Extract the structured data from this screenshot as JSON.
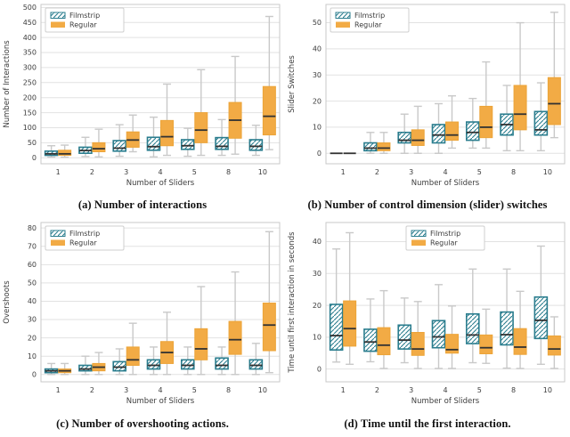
{
  "colors": {
    "filmstrip": "#2a7d8e",
    "regular": "#f2ab45",
    "regular_edge": "#eca438",
    "median": "#323232",
    "whisker": "#c9c9c9",
    "grid": "#e2e2e2",
    "frame": "#c9c9c9",
    "text": "#3c3c3c",
    "legend_border": "#cfcfcf",
    "background": "#ffffff"
  },
  "chart_data": [
    {
      "type": "boxplot",
      "caption": "(a) Number of interactions",
      "xlabel": "Number of Sliders",
      "ylabel": "Number of Interactions",
      "categories": [
        "1",
        "2",
        "3",
        "4",
        "5",
        "8",
        "10"
      ],
      "yticks": [
        0,
        50,
        100,
        150,
        200,
        250,
        300,
        350,
        400,
        450,
        500
      ],
      "ylim": [
        -20,
        510
      ],
      "legend_position": "top-left",
      "grid": "horizontal",
      "series": [
        {
          "name": "Filmstrip",
          "style": "hatched",
          "boxes": [
            [
              2,
              8,
              13,
              22,
              40
            ],
            [
              4,
              15,
              24,
              35,
              68
            ],
            [
              5,
              22,
              32,
              57,
              110
            ],
            [
              3,
              25,
              37,
              68,
              135
            ],
            [
              5,
              28,
              40,
              60,
              98
            ],
            [
              8,
              28,
              38,
              67,
              127
            ],
            [
              8,
              25,
              38,
              60,
              108
            ]
          ]
        },
        {
          "name": "Regular",
          "style": "solid",
          "boxes": [
            [
              2,
              8,
              13,
              25,
              42
            ],
            [
              3,
              20,
              30,
              50,
              95
            ],
            [
              20,
              35,
              59,
              86,
              142
            ],
            [
              8,
              40,
              70,
              124,
              245
            ],
            [
              8,
              50,
              92,
              150,
              293
            ],
            [
              12,
              65,
              125,
              184,
              337
            ],
            [
              27,
              76,
              138,
              237,
              470
            ]
          ]
        }
      ]
    },
    {
      "type": "boxplot",
      "caption": "(b) Number of control dimension (slider) switches",
      "xlabel": "Number of Sliders",
      "ylabel": "Slider Switches",
      "categories": [
        "1",
        "2",
        "3",
        "4",
        "5",
        "8",
        "10"
      ],
      "yticks": [
        0,
        10,
        20,
        30,
        40,
        50
      ],
      "ylim": [
        -4,
        57
      ],
      "legend_position": "top-left",
      "grid": "horizontal",
      "series": [
        {
          "name": "Filmstrip",
          "style": "hatched",
          "boxes": [
            [
              0,
              0,
              0,
              0,
              0
            ],
            [
              0,
              1,
              2,
              4,
              8
            ],
            [
              0,
              4,
              5,
              8,
              15
            ],
            [
              0,
              4,
              7,
              11,
              19
            ],
            [
              2,
              5,
              8,
              12,
              21
            ],
            [
              1,
              7,
              11,
              15,
              26
            ],
            [
              1,
              7,
              9,
              16,
              27
            ]
          ]
        },
        {
          "name": "Regular",
          "style": "solid",
          "boxes": [
            [
              0,
              0,
              0,
              0,
              0
            ],
            [
              0,
              1,
              2,
              4,
              8
            ],
            [
              0,
              3,
              5,
              9,
              18
            ],
            [
              2,
              5,
              7,
              12,
              22
            ],
            [
              2,
              6,
              10,
              18,
              35
            ],
            [
              1,
              9,
              15,
              26,
              50
            ],
            [
              6,
              11,
              19,
              29,
              54
            ]
          ]
        }
      ]
    },
    {
      "type": "boxplot",
      "caption": "(c) Number of overshooting actions.",
      "xlabel": "Number of Sliders",
      "ylabel": "Overshoots",
      "categories": [
        "1",
        "2",
        "3",
        "4",
        "5",
        "8",
        "10"
      ],
      "yticks": [
        0,
        10,
        20,
        30,
        40,
        50,
        60,
        70,
        80
      ],
      "ylim": [
        -4,
        83
      ],
      "legend_position": "top-left",
      "grid": "horizontal",
      "series": [
        {
          "name": "Filmstrip",
          "style": "hatched",
          "boxes": [
            [
              0,
              1,
              2,
              3,
              6
            ],
            [
              0,
              2,
              3,
              5,
              10
            ],
            [
              0,
              2,
              4,
              7,
              14
            ],
            [
              0,
              3,
              5,
              8,
              15
            ],
            [
              0,
              3,
              5,
              8,
              15
            ],
            [
              0,
              3,
              5,
              9,
              15
            ],
            [
              0,
              3,
              5,
              8,
              17
            ]
          ]
        },
        {
          "name": "Regular",
          "style": "solid",
          "boxes": [
            [
              0,
              1,
              2,
              3,
              6
            ],
            [
              0,
              2,
              4,
              6,
              12
            ],
            [
              0,
              5,
              8,
              15,
              28
            ],
            [
              0,
              6,
              12,
              18,
              34
            ],
            [
              0,
              8,
              14,
              25,
              48
            ],
            [
              0,
              11,
              19,
              29,
              56
            ],
            [
              1,
              13,
              27,
              39,
              78
            ]
          ]
        }
      ]
    },
    {
      "type": "boxplot",
      "caption": "(d) Time until the first interaction.",
      "xlabel": "Number of Sliders",
      "ylabel": "Time until first interaction in seconds",
      "categories": [
        "1",
        "2",
        "3",
        "4",
        "5",
        "8",
        "10"
      ],
      "yticks": [
        0,
        10,
        20,
        30,
        40
      ],
      "ylim": [
        -4,
        46
      ],
      "legend_position": "top-center",
      "grid": "horizontal",
      "series": [
        {
          "name": "Filmstrip",
          "style": "hatched",
          "boxes": [
            [
              2.2,
              6,
              10.5,
              20.3,
              37.7
            ],
            [
              2.3,
              5.6,
              8.5,
              12.5,
              22
            ],
            [
              2,
              6.3,
              9.1,
              13.8,
              22.3
            ],
            [
              0.2,
              6.7,
              10.1,
              15.2,
              26.5
            ],
            [
              2,
              8,
              10.7,
              17.3,
              31.4
            ],
            [
              0.3,
              7.6,
              10.8,
              17.9,
              31.4
            ],
            [
              1.5,
              9.6,
              15.3,
              22.6,
              38.6
            ]
          ]
        },
        {
          "name": "Regular",
          "style": "solid",
          "boxes": [
            [
              1.5,
              7.2,
              12.7,
              21.4,
              42.8
            ],
            [
              0.2,
              4.5,
              7.5,
              13,
              24.6
            ],
            [
              0.2,
              4.3,
              6.3,
              11.5,
              21.2
            ],
            [
              0.2,
              5,
              6.1,
              10.9,
              19.8
            ],
            [
              1.8,
              4.8,
              6.7,
              10.7,
              18.8
            ],
            [
              0.2,
              4.6,
              6.9,
              12.7,
              24.4
            ],
            [
              0.2,
              4.4,
              6.3,
              10.4,
              16.4
            ]
          ]
        }
      ]
    }
  ]
}
